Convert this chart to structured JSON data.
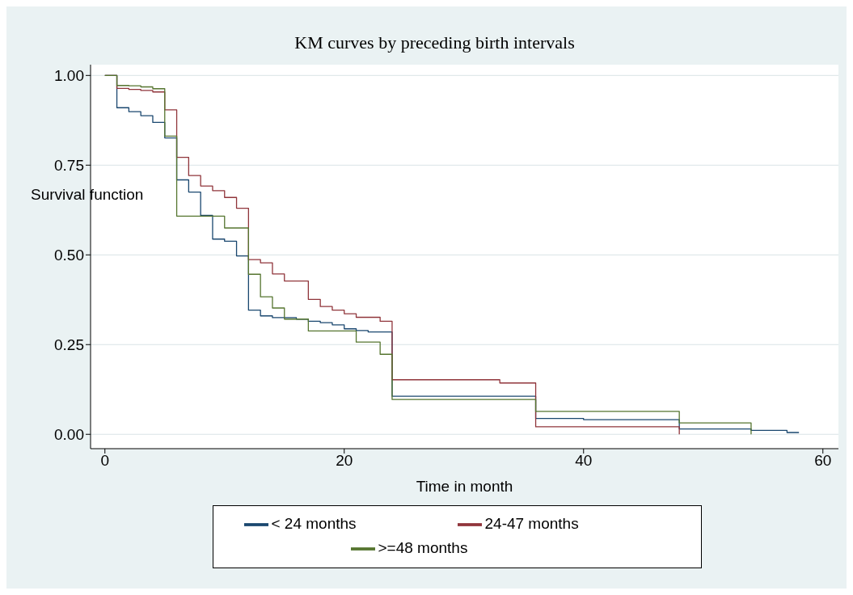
{
  "chart_data": {
    "type": "step",
    "title": "KM curves by preceding birth intervals",
    "xlabel": "Time in month",
    "ylabel": "Survival function",
    "xlim": [
      -1.2,
      61.3
    ],
    "ylim": [
      -0.04,
      1.03
    ],
    "xticks": [
      0,
      20,
      40,
      60
    ],
    "yticks": [
      {
        "value": 0,
        "label": "0.00"
      },
      {
        "value": 0.25,
        "label": "0.25"
      },
      {
        "value": 0.5,
        "label": "0.50"
      },
      {
        "value": 0.75,
        "label": "0.75"
      },
      {
        "value": 1,
        "label": "1.00"
      }
    ],
    "grid": "y",
    "legend": "bottom",
    "marker": "none",
    "line_style": "solid",
    "series": [
      {
        "name": "< 24 months",
        "color": "#1a476f",
        "x": [
          0,
          1,
          2,
          3,
          4,
          5,
          6,
          7,
          8,
          9,
          10,
          11,
          12,
          13,
          14,
          16,
          17,
          18,
          19,
          20,
          21,
          22,
          24,
          36,
          40,
          48,
          54,
          57,
          58
        ],
        "values": [
          1,
          0.91,
          0.899,
          0.888,
          0.869,
          0.826,
          0.709,
          0.675,
          0.61,
          0.544,
          0.538,
          0.497,
          0.346,
          0.33,
          0.325,
          0.321,
          0.315,
          0.311,
          0.305,
          0.294,
          0.289,
          0.285,
          0.106,
          0.044,
          0.041,
          0.015,
          0.011,
          0.005,
          0.005
        ]
      },
      {
        "name": "24-47 months",
        "color": "#90353b",
        "x": [
          0,
          1,
          2,
          3,
          4,
          5,
          6,
          7,
          8,
          9,
          10,
          11,
          12,
          13,
          14,
          15,
          17,
          18,
          19,
          20,
          21,
          23,
          24,
          33,
          36,
          48
        ],
        "values": [
          1,
          0.964,
          0.961,
          0.958,
          0.954,
          0.904,
          0.772,
          0.721,
          0.692,
          0.679,
          0.66,
          0.63,
          0.487,
          0.478,
          0.447,
          0.427,
          0.376,
          0.356,
          0.346,
          0.336,
          0.326,
          0.315,
          0.152,
          0.143,
          0.021,
          0
        ]
      },
      {
        "name": ">=48 months",
        "color": "#55752f",
        "x": [
          0,
          1,
          2,
          3,
          4,
          5,
          6,
          10,
          12,
          13,
          14,
          15,
          17,
          21,
          23,
          24,
          36,
          48,
          54
        ],
        "values": [
          1,
          0.972,
          0.971,
          0.968,
          0.963,
          0.831,
          0.608,
          0.575,
          0.446,
          0.383,
          0.352,
          0.321,
          0.288,
          0.257,
          0.223,
          0.097,
          0.064,
          0.032,
          0
        ]
      }
    ]
  }
}
